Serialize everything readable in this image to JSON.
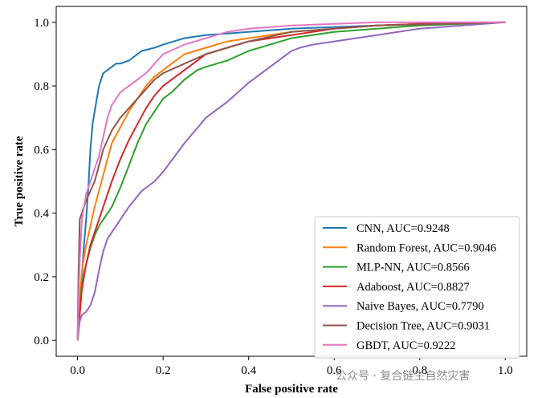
{
  "watermark": "公众号 · 复合链生自然灾害",
  "chart_data": {
    "type": "line",
    "title": "",
    "xlabel": "False positive rate",
    "ylabel": "True positive rate",
    "xlim": [
      -0.05,
      1.05
    ],
    "ylim": [
      -0.05,
      1.05
    ],
    "xticks": [
      "0.0",
      "0.2",
      "0.4",
      "0.6",
      "0.8",
      "1.0"
    ],
    "yticks": [
      "0.0",
      "0.2",
      "0.4",
      "0.6",
      "0.8",
      "1.0"
    ],
    "grid": false,
    "legend_position": "lower-right",
    "series": [
      {
        "name": "CNN, AUC=0.9248",
        "color": "#1f77b4",
        "x": [
          0.0,
          0.005,
          0.01,
          0.015,
          0.02,
          0.025,
          0.03,
          0.035,
          0.04,
          0.045,
          0.05,
          0.06,
          0.07,
          0.08,
          0.09,
          0.1,
          0.12,
          0.14,
          0.15,
          0.18,
          0.2,
          0.25,
          0.3,
          0.4,
          0.5,
          0.6,
          0.7,
          0.8,
          1.0
        ],
        "y": [
          0.0,
          0.12,
          0.2,
          0.3,
          0.38,
          0.48,
          0.6,
          0.68,
          0.72,
          0.76,
          0.8,
          0.84,
          0.85,
          0.86,
          0.87,
          0.87,
          0.88,
          0.9,
          0.91,
          0.92,
          0.93,
          0.95,
          0.96,
          0.97,
          0.98,
          0.985,
          0.99,
          0.995,
          1.0
        ]
      },
      {
        "name": "Random Forest, AUC=0.9046",
        "color": "#ff7f0e",
        "x": [
          0.0,
          0.01,
          0.02,
          0.03,
          0.04,
          0.05,
          0.06,
          0.07,
          0.08,
          0.1,
          0.12,
          0.14,
          0.16,
          0.18,
          0.2,
          0.22,
          0.25,
          0.3,
          0.35,
          0.4,
          0.5,
          0.6,
          0.7,
          0.8,
          1.0
        ],
        "y": [
          0.0,
          0.22,
          0.3,
          0.36,
          0.42,
          0.47,
          0.52,
          0.57,
          0.62,
          0.67,
          0.72,
          0.76,
          0.8,
          0.83,
          0.85,
          0.87,
          0.9,
          0.92,
          0.94,
          0.95,
          0.97,
          0.98,
          0.99,
          0.995,
          1.0
        ]
      },
      {
        "name": "MLP-NN, AUC=0.8566",
        "color": "#2ca02c",
        "x": [
          0.0,
          0.01,
          0.02,
          0.03,
          0.04,
          0.05,
          0.06,
          0.08,
          0.1,
          0.12,
          0.14,
          0.16,
          0.18,
          0.2,
          0.22,
          0.25,
          0.28,
          0.3,
          0.35,
          0.4,
          0.45,
          0.5,
          0.6,
          0.7,
          0.8,
          1.0
        ],
        "y": [
          0.0,
          0.18,
          0.24,
          0.29,
          0.33,
          0.36,
          0.38,
          0.42,
          0.48,
          0.55,
          0.62,
          0.68,
          0.72,
          0.76,
          0.78,
          0.82,
          0.85,
          0.86,
          0.88,
          0.91,
          0.93,
          0.95,
          0.97,
          0.98,
          0.99,
          1.0
        ]
      },
      {
        "name": "Adaboost, AUC=0.8827",
        "color": "#d62728",
        "x": [
          0.0,
          0.01,
          0.02,
          0.03,
          0.04,
          0.05,
          0.06,
          0.08,
          0.1,
          0.12,
          0.14,
          0.16,
          0.18,
          0.2,
          0.22,
          0.25,
          0.28,
          0.3,
          0.35,
          0.4,
          0.5,
          0.6,
          0.7,
          0.8,
          1.0
        ],
        "y": [
          0.0,
          0.16,
          0.24,
          0.3,
          0.34,
          0.38,
          0.42,
          0.5,
          0.57,
          0.63,
          0.68,
          0.73,
          0.77,
          0.8,
          0.82,
          0.85,
          0.88,
          0.9,
          0.92,
          0.94,
          0.96,
          0.98,
          0.99,
          0.995,
          1.0
        ]
      },
      {
        "name": "Naive Bayes, AUC=0.7790",
        "color": "#9467bd",
        "x": [
          0.0,
          0.005,
          0.01,
          0.02,
          0.03,
          0.04,
          0.05,
          0.06,
          0.07,
          0.08,
          0.1,
          0.12,
          0.15,
          0.18,
          0.2,
          0.25,
          0.3,
          0.35,
          0.4,
          0.45,
          0.48,
          0.5,
          0.52,
          0.55,
          0.6,
          0.7,
          0.8,
          0.9,
          1.0
        ],
        "y": [
          0.0,
          0.06,
          0.08,
          0.09,
          0.11,
          0.15,
          0.22,
          0.28,
          0.32,
          0.34,
          0.38,
          0.42,
          0.47,
          0.5,
          0.53,
          0.62,
          0.7,
          0.75,
          0.81,
          0.86,
          0.89,
          0.91,
          0.92,
          0.93,
          0.94,
          0.96,
          0.98,
          0.99,
          1.0
        ]
      },
      {
        "name": "Decision Tree, AUC=0.9031",
        "color": "#8c564b",
        "x": [
          0.0,
          0.002,
          0.005,
          0.01,
          0.015,
          0.02,
          0.03,
          0.04,
          0.05,
          0.06,
          0.08,
          0.1,
          0.12,
          0.14,
          0.16,
          0.18,
          0.2,
          0.25,
          0.3,
          0.35,
          0.4,
          0.5,
          0.6,
          0.7,
          1.0
        ],
        "y": [
          0.0,
          0.2,
          0.38,
          0.4,
          0.42,
          0.44,
          0.47,
          0.5,
          0.55,
          0.6,
          0.66,
          0.7,
          0.73,
          0.76,
          0.79,
          0.82,
          0.84,
          0.87,
          0.9,
          0.92,
          0.94,
          0.97,
          0.98,
          0.99,
          1.0
        ]
      },
      {
        "name": "GBDT, AUC=0.9222",
        "color": "#e377c2",
        "x": [
          0.0,
          0.005,
          0.01,
          0.015,
          0.02,
          0.03,
          0.04,
          0.05,
          0.06,
          0.07,
          0.08,
          0.09,
          0.1,
          0.12,
          0.14,
          0.16,
          0.18,
          0.2,
          0.25,
          0.3,
          0.35,
          0.4,
          0.5,
          0.6,
          0.7,
          1.0
        ],
        "y": [
          0.0,
          0.25,
          0.38,
          0.42,
          0.46,
          0.5,
          0.54,
          0.58,
          0.64,
          0.7,
          0.74,
          0.76,
          0.78,
          0.8,
          0.82,
          0.84,
          0.87,
          0.9,
          0.93,
          0.95,
          0.97,
          0.98,
          0.99,
          0.995,
          1.0,
          1.0
        ]
      }
    ]
  }
}
